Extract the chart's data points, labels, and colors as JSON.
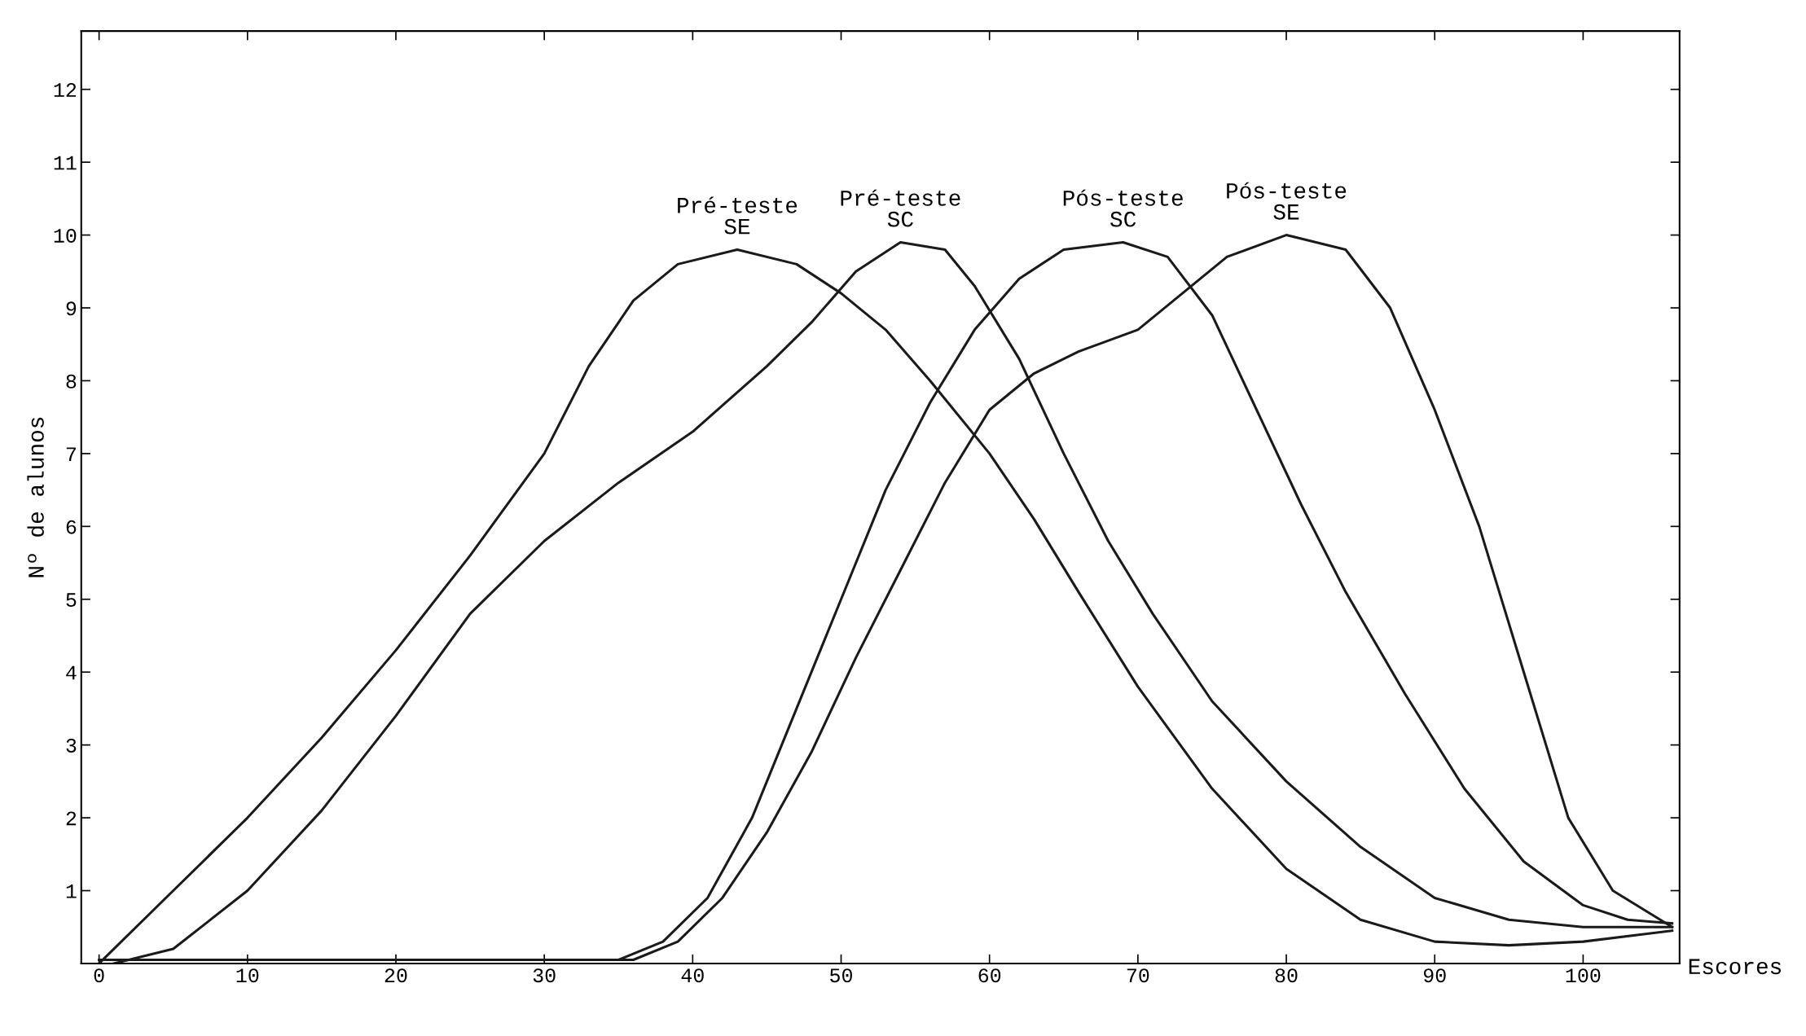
{
  "chart_data": {
    "type": "line",
    "xlabel": "Escores",
    "ylabel": "Nº de alunos",
    "xlim": [
      -1.2,
      106.5
    ],
    "ylim": [
      0,
      12.8
    ],
    "xticks": [
      0,
      10,
      20,
      30,
      40,
      50,
      60,
      70,
      80,
      90,
      100
    ],
    "yticks": [
      1,
      2,
      3,
      4,
      5,
      6,
      7,
      8,
      9,
      10,
      11,
      12
    ],
    "grid": false,
    "legend": false,
    "marker": "none",
    "line_style": "solid",
    "series": [
      {
        "name": "Pré-teste\nSE",
        "color": "#1a1a1a",
        "x": [
          0,
          5,
          10,
          15,
          20,
          25,
          30,
          33,
          36,
          39,
          43,
          47,
          50,
          53,
          56,
          60,
          63,
          66,
          70,
          75,
          80,
          85,
          90,
          95,
          100,
          106
        ],
        "values": [
          0,
          1.0,
          2.0,
          3.1,
          4.3,
          5.6,
          7.0,
          8.2,
          9.1,
          9.6,
          9.8,
          9.6,
          9.2,
          8.7,
          8.0,
          7.0,
          6.1,
          5.1,
          3.8,
          2.4,
          1.3,
          0.6,
          0.3,
          0.25,
          0.3,
          0.45
        ]
      },
      {
        "name": "Pré-teste\nSC",
        "color": "#1a1a1a",
        "x": [
          1,
          5,
          10,
          15,
          20,
          25,
          30,
          35,
          40,
          45,
          48,
          51,
          54,
          57,
          59,
          62,
          65,
          68,
          71,
          75,
          80,
          85,
          90,
          95,
          100,
          106
        ],
        "values": [
          0,
          0.2,
          1.0,
          2.1,
          3.4,
          4.8,
          5.8,
          6.6,
          7.3,
          8.2,
          8.8,
          9.5,
          9.9,
          9.8,
          9.3,
          8.3,
          7.0,
          5.8,
          4.8,
          3.6,
          2.5,
          1.6,
          0.9,
          0.6,
          0.5,
          0.5
        ]
      },
      {
        "name": "Pós-teste\nSC",
        "color": "#1a1a1a",
        "x": [
          0,
          35,
          38,
          41,
          44,
          47,
          50,
          53,
          56,
          59,
          62,
          65,
          69,
          72,
          75,
          78,
          81,
          84,
          88,
          92,
          96,
          100,
          103,
          106
        ],
        "values": [
          0.05,
          0.05,
          0.3,
          0.9,
          2.0,
          3.5,
          5.0,
          6.5,
          7.7,
          8.7,
          9.4,
          9.8,
          9.9,
          9.7,
          8.9,
          7.6,
          6.3,
          5.1,
          3.7,
          2.4,
          1.4,
          0.8,
          0.6,
          0.55
        ]
      },
      {
        "name": "Pós-teste\nSE",
        "color": "#1a1a1a",
        "x": [
          0,
          36,
          39,
          42,
          45,
          48,
          51,
          54,
          57,
          60,
          63,
          66,
          70,
          73,
          76,
          80,
          84,
          87,
          90,
          93,
          96,
          99,
          102,
          106
        ],
        "values": [
          0.05,
          0.05,
          0.3,
          0.9,
          1.8,
          2.9,
          4.2,
          5.4,
          6.6,
          7.6,
          8.1,
          8.4,
          8.7,
          9.2,
          9.7,
          10.0,
          9.8,
          9.0,
          7.6,
          6.0,
          4.0,
          2.0,
          1.0,
          0.5
        ]
      }
    ]
  }
}
